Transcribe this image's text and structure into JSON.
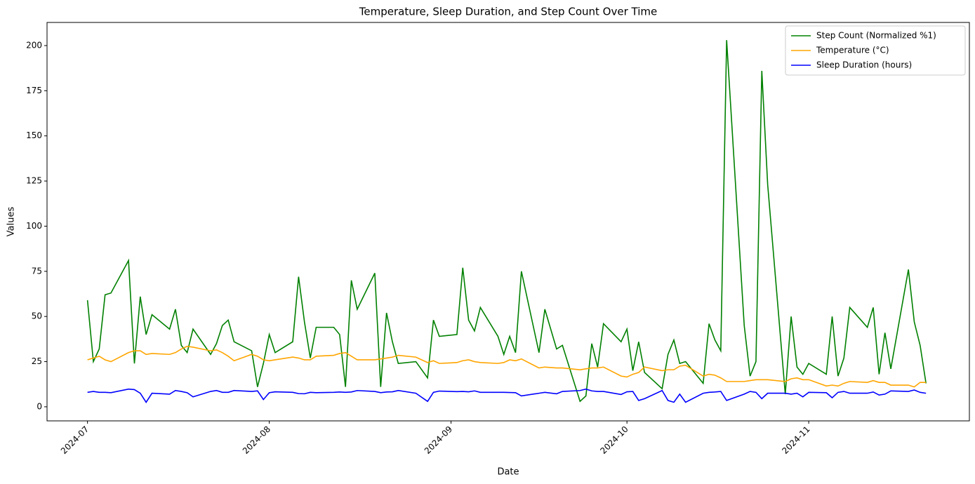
{
  "chart_data": {
    "type": "line",
    "title": "Temperature, Sleep Duration, and Step Count Over Time",
    "x_label": "Date",
    "y_label": "Values",
    "x": [
      0,
      1,
      2,
      3,
      4,
      7,
      8,
      9,
      10,
      11,
      14,
      15,
      16,
      17,
      18,
      21,
      22,
      23,
      24,
      25,
      28,
      29,
      30,
      31,
      32,
      35,
      36,
      37,
      38,
      39,
      42,
      43,
      44,
      45,
      46,
      49,
      50,
      51,
      52,
      53,
      56,
      58,
      59,
      60,
      63,
      64,
      65,
      66,
      67,
      70,
      71,
      72,
      73,
      74,
      77,
      78,
      80,
      81,
      84,
      85,
      86,
      87,
      88,
      91,
      92,
      93,
      94,
      95,
      98,
      99,
      100,
      101,
      102,
      105,
      106,
      107,
      108,
      109,
      112,
      113,
      114,
      115,
      116,
      119,
      120,
      121,
      122,
      123,
      126,
      127,
      128,
      129,
      130,
      133,
      134,
      135,
      136,
      137,
      140,
      141,
      142,
      143
    ],
    "series": [
      {
        "name": "Step Count (Normalized %1)",
        "color": "green",
        "values": [
          59,
          25,
          32,
          62,
          63,
          81,
          24,
          61,
          40,
          51,
          43,
          54,
          34,
          30,
          43,
          29,
          35,
          45,
          48,
          36,
          31,
          11,
          24,
          40,
          30,
          36,
          72,
          47,
          27,
          44,
          44,
          40,
          11,
          70,
          54,
          74,
          11,
          52,
          36,
          24,
          25,
          16,
          48,
          39,
          40,
          77,
          48,
          42,
          55,
          39,
          29,
          39,
          30,
          75,
          30,
          54,
          32,
          34,
          3,
          6,
          35,
          22,
          46,
          36,
          43,
          20,
          36,
          19,
          10,
          29,
          37,
          24,
          25,
          13,
          46,
          37,
          31,
          203,
          45,
          17,
          25,
          186,
          123,
          7,
          50,
          22,
          18,
          24,
          18,
          50,
          17,
          27,
          55,
          44,
          55,
          18,
          41,
          21,
          76,
          47,
          34,
          13
        ]
      },
      {
        "name": "Temperature (°C)",
        "color": "orange",
        "values": [
          26,
          27,
          28,
          26,
          25,
          30,
          31,
          31,
          29,
          29.5,
          29,
          30,
          32,
          33.5,
          33,
          31,
          31.5,
          30,
          28,
          25.5,
          29,
          28,
          26,
          25.5,
          26,
          27.5,
          27,
          26,
          26,
          28,
          28.5,
          29.5,
          30,
          28,
          26,
          26,
          26.5,
          27,
          27.5,
          28.5,
          27.5,
          24.5,
          25.5,
          24,
          24.5,
          25.5,
          26,
          25,
          24.5,
          24,
          24.5,
          26,
          25.5,
          26.5,
          21.5,
          22,
          21.5,
          21.5,
          20.5,
          21,
          21.5,
          21.5,
          22,
          17,
          16.5,
          18,
          19,
          22,
          20,
          20.5,
          20.5,
          22.5,
          23,
          17,
          18,
          17.5,
          16,
          14,
          14,
          14.5,
          15,
          15,
          15,
          14,
          15.5,
          16,
          15,
          15,
          11.5,
          12,
          11.5,
          13,
          14,
          13.5,
          14.5,
          13.5,
          13.5,
          12,
          12,
          11,
          13.5,
          13.5
        ]
      },
      {
        "name": "Sleep Duration (hours)",
        "color": "blue",
        "values": [
          8,
          8.5,
          8,
          8,
          7.8,
          9.8,
          9.5,
          7.5,
          2.5,
          7.5,
          7,
          9,
          8.5,
          7.8,
          5.5,
          8.5,
          9,
          8,
          8,
          9,
          8.5,
          8.8,
          4,
          7.8,
          8.3,
          8,
          7.3,
          7.2,
          8,
          7.8,
          8,
          8.2,
          8,
          8.2,
          9,
          8.5,
          7.8,
          8.2,
          8.3,
          9,
          7.5,
          3,
          8,
          8.7,
          8.4,
          8.5,
          8.3,
          8.8,
          8,
          8,
          8,
          7.9,
          7.8,
          6,
          7.5,
          8,
          7.2,
          8.5,
          9,
          9.8,
          8.8,
          8.5,
          8.5,
          6.8,
          8.3,
          8.5,
          3.5,
          4.5,
          9,
          3.5,
          2.5,
          7,
          2.5,
          7.5,
          8,
          8.2,
          8.5,
          3.5,
          7,
          8.5,
          8,
          4.5,
          7.5,
          7.5,
          7,
          7.5,
          5.5,
          8,
          7.8,
          5,
          8,
          8.5,
          7.5,
          7.5,
          8.2,
          6.5,
          7,
          8.8,
          8.5,
          9.3,
          8,
          7.5
        ]
      }
    ],
    "xlim": [
      -6.9,
      150.4
    ],
    "xticks": [
      {
        "value": 0,
        "label": "2024-07"
      },
      {
        "value": 31,
        "label": "2024-08"
      },
      {
        "value": 62,
        "label": "2024-09"
      },
      {
        "value": 92,
        "label": "2024-10"
      },
      {
        "value": 123,
        "label": "2024-11"
      }
    ],
    "ylim": [
      -7.8,
      212.8
    ],
    "yticks": [
      0,
      25,
      50,
      75,
      100,
      125,
      150,
      175,
      200
    ],
    "grid": false,
    "legend": "upper right"
  }
}
